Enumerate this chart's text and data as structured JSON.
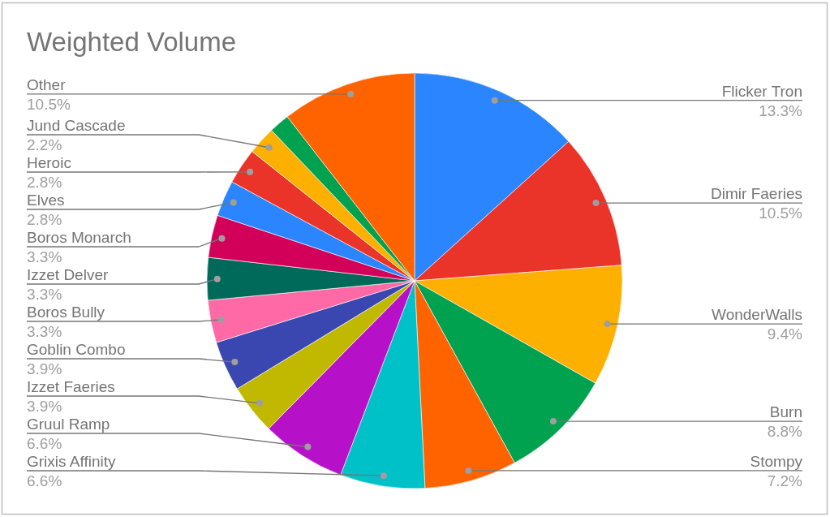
{
  "chart_data": {
    "type": "pie",
    "title": "Weighted Volume",
    "categories": [
      "Flicker Tron",
      "Dimir Faeries",
      "WonderWalls",
      "Burn",
      "Stompy",
      "Grixis Affinity",
      "Gruul Ramp",
      "Izzet Faeries",
      "Goblin Combo",
      "Boros Bully",
      "Izzet Delver",
      "Boros Monarch",
      "Elves",
      "Heroic",
      "Jund Cascade",
      null,
      "Other"
    ],
    "values": [
      13.3,
      10.5,
      9.4,
      8.8,
      7.2,
      6.6,
      6.6,
      3.9,
      3.9,
      3.3,
      3.3,
      3.3,
      2.8,
      2.8,
      2.2,
      1.6,
      10.5
    ],
    "colors": [
      "#2a85ff",
      "#ea3329",
      "#fdb000",
      "#00a14f",
      "#ff6300",
      "#00c0c8",
      "#b611c8",
      "#c0b900",
      "#3a47b0",
      "#ff69a5",
      "#006a5a",
      "#d3005a",
      "#2a85ff",
      "#ea3329",
      "#fdb000",
      "#00a14f",
      "#ff6300"
    ],
    "value_labels": [
      "13.3%",
      "10.5%",
      "9.4%",
      "8.8%",
      "7.2%",
      "6.6%",
      "6.6%",
      "3.9%",
      "3.9%",
      "3.3%",
      "3.3%",
      "3.3%",
      "2.8%",
      "2.8%",
      "2.2%",
      null,
      "10.5%"
    ]
  }
}
